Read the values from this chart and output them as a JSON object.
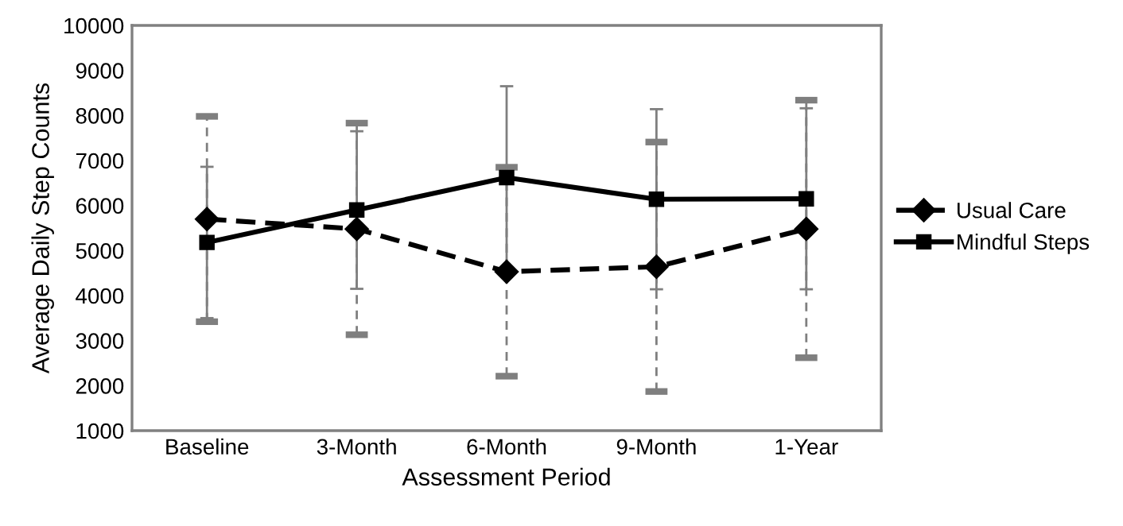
{
  "chart_data": {
    "type": "line",
    "xlabel": "Assessment Period",
    "ylabel": "Average Daily Step Counts",
    "categories": [
      "Baseline",
      "3-Month",
      "6-Month",
      "9-Month",
      "1-Year"
    ],
    "series": [
      {
        "name": "Usual Care",
        "color": "#000000",
        "values": [
          5700,
          5480,
          4530,
          4640,
          5480
        ],
        "errors": [
          2280,
          2350,
          2320,
          2770,
          2860
        ],
        "marker": "diamond",
        "line_style": "dashed"
      },
      {
        "name": "Mindful Steps",
        "color": "#000000",
        "values": [
          5180,
          5900,
          6620,
          6140,
          6150
        ],
        "errors": [
          1680,
          1750,
          2030,
          2000,
          2010
        ],
        "marker": "square",
        "line_style": "solid"
      }
    ],
    "ylim": [
      1000,
      10000
    ],
    "yticks": [
      1000,
      2000,
      3000,
      4000,
      5000,
      6000,
      7000,
      8000,
      9000,
      10000
    ],
    "grid": false,
    "legend": "right"
  }
}
